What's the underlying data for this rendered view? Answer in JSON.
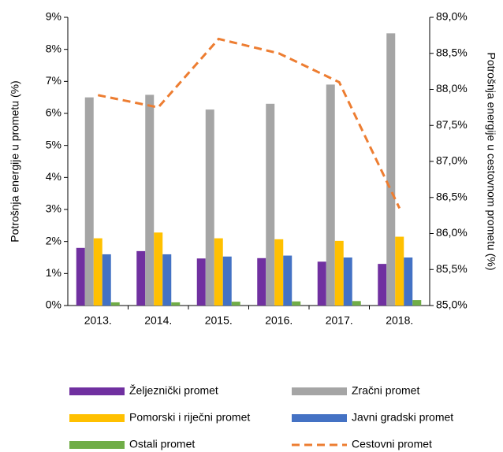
{
  "chart_data": {
    "type": "bar",
    "categories": [
      "2013.",
      "2014.",
      "2015.",
      "2016.",
      "2017.",
      "2018."
    ],
    "series": [
      {
        "name": "Željeznički promet",
        "color": "#7030a0",
        "values": [
          1.8,
          1.7,
          1.47,
          1.48,
          1.37,
          1.3
        ]
      },
      {
        "name": "Zračni promet",
        "color": "#a5a5a5",
        "values": [
          6.5,
          6.58,
          6.12,
          6.3,
          6.9,
          8.5
        ]
      },
      {
        "name": "Pomorski i riječni promet",
        "color": "#ffc000",
        "values": [
          2.1,
          2.28,
          2.1,
          2.07,
          2.02,
          2.15
        ]
      },
      {
        "name": "Javni gradski promet",
        "color": "#4472c4",
        "values": [
          1.6,
          1.6,
          1.53,
          1.56,
          1.5,
          1.5
        ]
      },
      {
        "name": "Ostali promet",
        "color": "#70ad47",
        "values": [
          0.1,
          0.1,
          0.12,
          0.13,
          0.14,
          0.17
        ]
      },
      {
        "name": "Cestovni promet",
        "color": "#ed7d31",
        "type": "line",
        "dashed": true,
        "axis": "y2",
        "values": [
          87.92,
          87.75,
          88.7,
          88.5,
          88.1,
          86.35
        ]
      }
    ],
    "ylabel": "Potrošnja energije u prometu (%)",
    "y2label": "Potrošnja energije u cestovnom prometu (%)",
    "ylim": [
      0,
      9
    ],
    "yticks": [
      {
        "value": 0,
        "label": "0%"
      },
      {
        "value": 1,
        "label": "1%"
      },
      {
        "value": 2,
        "label": "2%"
      },
      {
        "value": 3,
        "label": "3%"
      },
      {
        "value": 4,
        "label": "4%"
      },
      {
        "value": 5,
        "label": "5%"
      },
      {
        "value": 6,
        "label": "6%"
      },
      {
        "value": 7,
        "label": "7%"
      },
      {
        "value": 8,
        "label": "8%"
      },
      {
        "value": 9,
        "label": "9%"
      }
    ],
    "y2lim": [
      85,
      89
    ],
    "y2ticks": [
      {
        "value": 85,
        "label": "85,0%"
      },
      {
        "value": 85.5,
        "label": "85,5%"
      },
      {
        "value": 86,
        "label": "86,0%"
      },
      {
        "value": 86.5,
        "label": "86,5%"
      },
      {
        "value": 87,
        "label": "87,0%"
      },
      {
        "value": 87.5,
        "label": "87,5%"
      },
      {
        "value": 88,
        "label": "88,0%"
      },
      {
        "value": 88.5,
        "label": "88,5%"
      },
      {
        "value": 89,
        "label": "89,0%"
      }
    ],
    "grid": false,
    "legend": "bottom"
  }
}
